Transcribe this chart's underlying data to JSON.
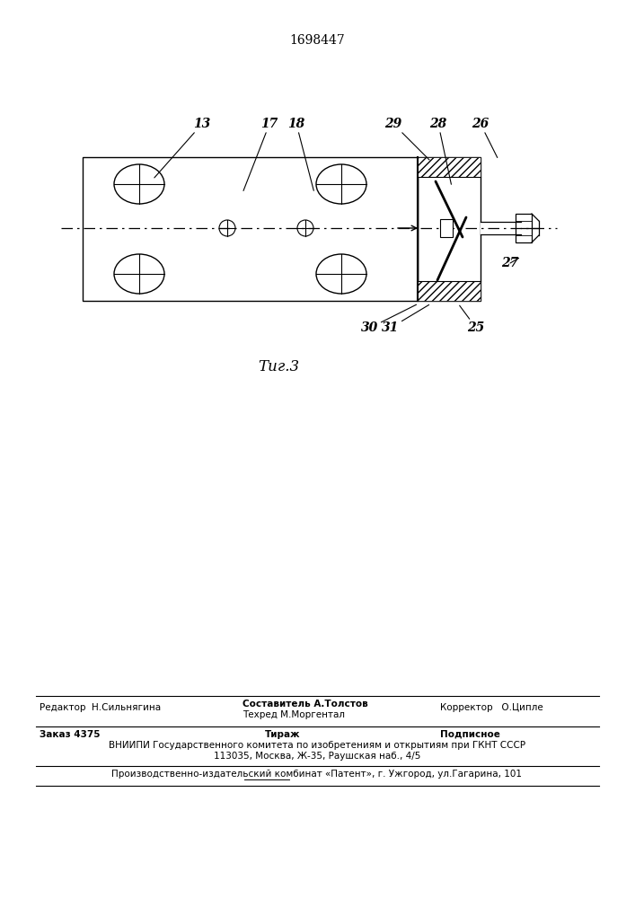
{
  "patent_number": "1698447",
  "fig_label": "Τиг.3",
  "bg": "#ffffff",
  "lc": "#000000",
  "footer": {
    "editor": "Редактор  Н.Сильнягина",
    "composer1": "Составитель А.Толстов",
    "composer2": "Техред М.Моргентал",
    "corrector": "Корректор   О.Ципле",
    "order": "Заказ 4375",
    "tirazh": "Тираж",
    "podpisnoe": "Подписное",
    "vniip": "ВНИИПИ Государственного комитета по изобретениям и открытиям при ГКНТ СССР",
    "address": "113035, Москва, Ж-35, Раушская наб., 4/5",
    "publisher": "Производственно-издательский комбинат «Патент», г. Ужгород, ул.Гагарина, 101"
  }
}
